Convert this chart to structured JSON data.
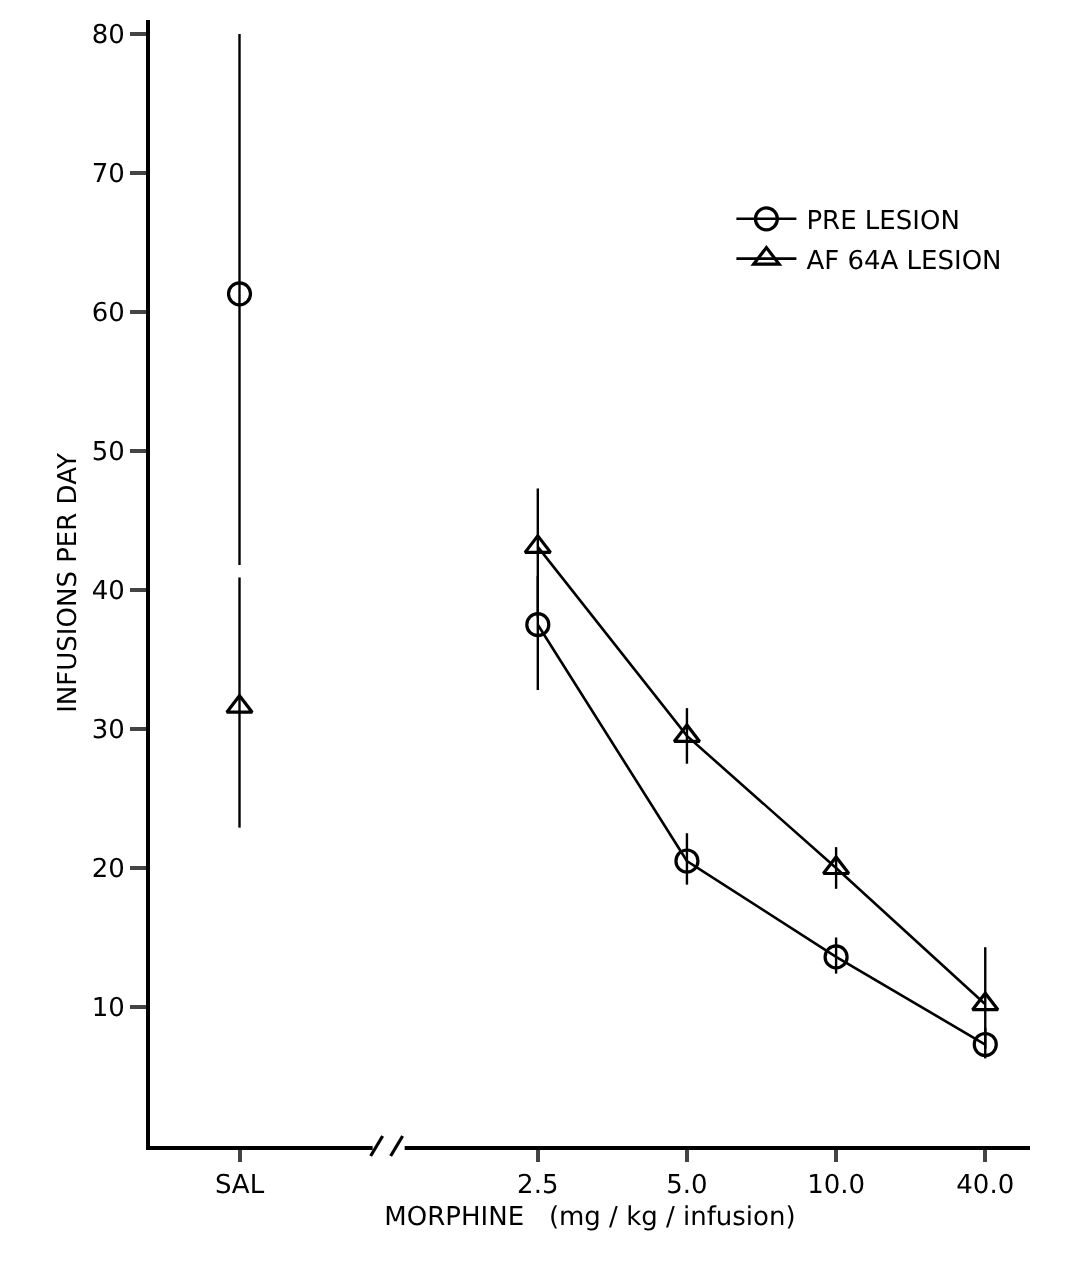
{
  "chart_data": {
    "type": "line",
    "xlabel": "MORPHINE   (mg / kg / infusion)",
    "ylabel": "INFUSIONS PER DAY",
    "categories": [
      "SAL",
      null,
      "2.5",
      "5.0",
      "10.0",
      "40.0"
    ],
    "ylim": [
      0,
      81
    ],
    "yticks": [
      10,
      20,
      30,
      40,
      50,
      60,
      70,
      80
    ],
    "grid": false,
    "legend": "top right",
    "series": [
      {
        "name": "PRE LESION",
        "color": "#000000",
        "marker": "circle",
        "values": [
          61.3,
          null,
          37.5,
          20.5,
          13.6,
          7.3
        ],
        "errors": [
          [
            41.8,
            80
          ],
          null,
          [
            32.8,
            41
          ],
          [
            18.8,
            22.5
          ],
          [
            12.4,
            15
          ],
          [
            6.3,
            8.5
          ]
        ]
      },
      {
        "name": "AF 64A LESION",
        "color": "#000000",
        "marker": "triangle",
        "values": [
          31.6,
          null,
          43.1,
          29.5,
          20,
          10.2
        ],
        "errors": [
          [
            22.9,
            40.9
          ],
          null,
          [
            38,
            47.3
          ],
          [
            27.5,
            31.5
          ],
          [
            18.5,
            21.5
          ],
          [
            7,
            14.3
          ]
        ]
      }
    ]
  }
}
